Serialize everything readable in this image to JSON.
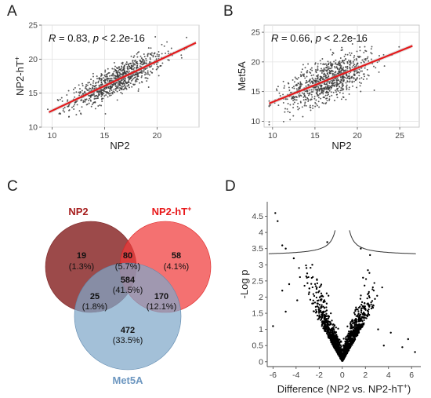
{
  "panels": {
    "a": {
      "letter": "A",
      "stat_r_symbol": "R",
      "stat_r_value": " = 0.83, ",
      "stat_p_symbol": "p",
      "stat_p_value": " < 2.2e-16"
    },
    "b": {
      "letter": "B",
      "stat_r_symbol": "R",
      "stat_r_value": " = 0.66, ",
      "stat_p_symbol": "p",
      "stat_p_value": " < 2.2e-16"
    },
    "c": {
      "letter": "C"
    },
    "d": {
      "letter": "D"
    }
  },
  "chart_data": [
    {
      "panel": "A",
      "type": "scatter",
      "xlabel": "NP2",
      "ylabel_main": "NP2-hT",
      "ylabel_sup": "+",
      "xlim": [
        9,
        24
      ],
      "ylim": [
        10,
        25
      ],
      "xticks": [
        10,
        15,
        20
      ],
      "yticks": [
        10,
        15,
        20,
        25
      ],
      "grid": true,
      "n_points": 900,
      "x_mean": 16.2,
      "x_sd": 2.2,
      "r": 0.83,
      "regression": {
        "x": [
          9.7,
          23.7
        ],
        "y": [
          12.2,
          22.4
        ]
      },
      "point_color": "#3a3a3a",
      "line_color": "#e41a1c"
    },
    {
      "panel": "B",
      "type": "scatter",
      "xlabel": "NP2",
      "ylabel": "Met5A",
      "xlim": [
        9,
        27.3
      ],
      "ylim": [
        9,
        26.2
      ],
      "xticks": [
        10,
        15,
        20,
        25
      ],
      "yticks": [
        10,
        15,
        20,
        25
      ],
      "grid": true,
      "n_points": 900,
      "x_mean": 16.6,
      "x_sd": 2.6,
      "r": 0.66,
      "regression": {
        "x": [
          9.6,
          26.5
        ],
        "y": [
          13.0,
          22.7
        ]
      },
      "point_color": "#3a3a3a",
      "line_color": "#e41a1c"
    },
    {
      "panel": "C",
      "type": "venn",
      "sets": [
        {
          "name": "NP2",
          "color": "#8b2a2a",
          "label_color": "#a61e1e"
        },
        {
          "name_main": "NP2-hT",
          "name_sup": "+",
          "color": "#f03a3a",
          "label_color": "#e8191b"
        },
        {
          "name": "Met5A",
          "color": "#7fa7c9",
          "label_color": "#6d97c0"
        }
      ],
      "regions": [
        {
          "sets": [
            "NP2"
          ],
          "count": "19",
          "percent": "(1.3%)"
        },
        {
          "sets": [
            "NP2",
            "NP2-hT+"
          ],
          "count": "80",
          "percent": "(5.7%)"
        },
        {
          "sets": [
            "NP2-hT+"
          ],
          "count": "58",
          "percent": "(4.1%)"
        },
        {
          "sets": [
            "NP2",
            "NP2-hT+",
            "Met5A"
          ],
          "count": "584",
          "percent": "(41.5%)"
        },
        {
          "sets": [
            "NP2",
            "Met5A"
          ],
          "count": "25",
          "percent": "(1.8%)"
        },
        {
          "sets": [
            "NP2-hT+",
            "Met5A"
          ],
          "count": "170",
          "percent": "(12.1%)"
        },
        {
          "sets": [
            "Met5A"
          ],
          "count": "472",
          "percent": "(33.5%)"
        }
      ]
    },
    {
      "panel": "D",
      "type": "scatter",
      "subtype": "volcano",
      "xlabel_main": "Difference (NP2 vs. NP2-hT",
      "xlabel_sup": "+",
      "xlabel_end": ")",
      "ylabel": "-Log p",
      "xlim": [
        -6.5,
        6.8
      ],
      "ylim": [
        -0.15,
        4.95
      ],
      "xticks": [
        -6,
        -4,
        -2,
        0,
        2,
        4,
        6
      ],
      "yticks": [
        0,
        0.5,
        1,
        1.5,
        2,
        2.5,
        3,
        3.5,
        4,
        4.5
      ],
      "grid": false,
      "n_points": 1400,
      "threshold_curve": {
        "s0": 0.12,
        "c": 3.28
      },
      "outliers": [
        {
          "x": -5.8,
          "y": 4.6
        },
        {
          "x": -5.6,
          "y": 4.35
        },
        {
          "x": -5.2,
          "y": 3.6
        },
        {
          "x": -4.9,
          "y": 3.5
        },
        {
          "x": -4.2,
          "y": 3.2
        },
        {
          "x": -3.1,
          "y": 2.9
        },
        {
          "x": -4.6,
          "y": 2.4
        },
        {
          "x": -5.2,
          "y": 2.2
        },
        {
          "x": -6.0,
          "y": 1.1
        },
        {
          "x": -2.6,
          "y": 3.0
        },
        {
          "x": -2.2,
          "y": 2.55
        },
        {
          "x": 2.4,
          "y": 3.3
        },
        {
          "x": 1.8,
          "y": 2.6
        },
        {
          "x": 2.6,
          "y": 1.7
        },
        {
          "x": 3.1,
          "y": 1.0
        },
        {
          "x": 4.2,
          "y": 0.9
        },
        {
          "x": 5.2,
          "y": 0.45
        },
        {
          "x": 6.3,
          "y": 0.3
        },
        {
          "x": 5.7,
          "y": 0.7
        },
        {
          "x": 3.6,
          "y": 0.5
        },
        {
          "x": -1.3,
          "y": 3.7
        },
        {
          "x": 1.6,
          "y": 3.5
        },
        {
          "x": -4.9,
          "y": 1.55
        },
        {
          "x": -3.9,
          "y": 1.9
        }
      ],
      "point_color": "#000000"
    }
  ]
}
